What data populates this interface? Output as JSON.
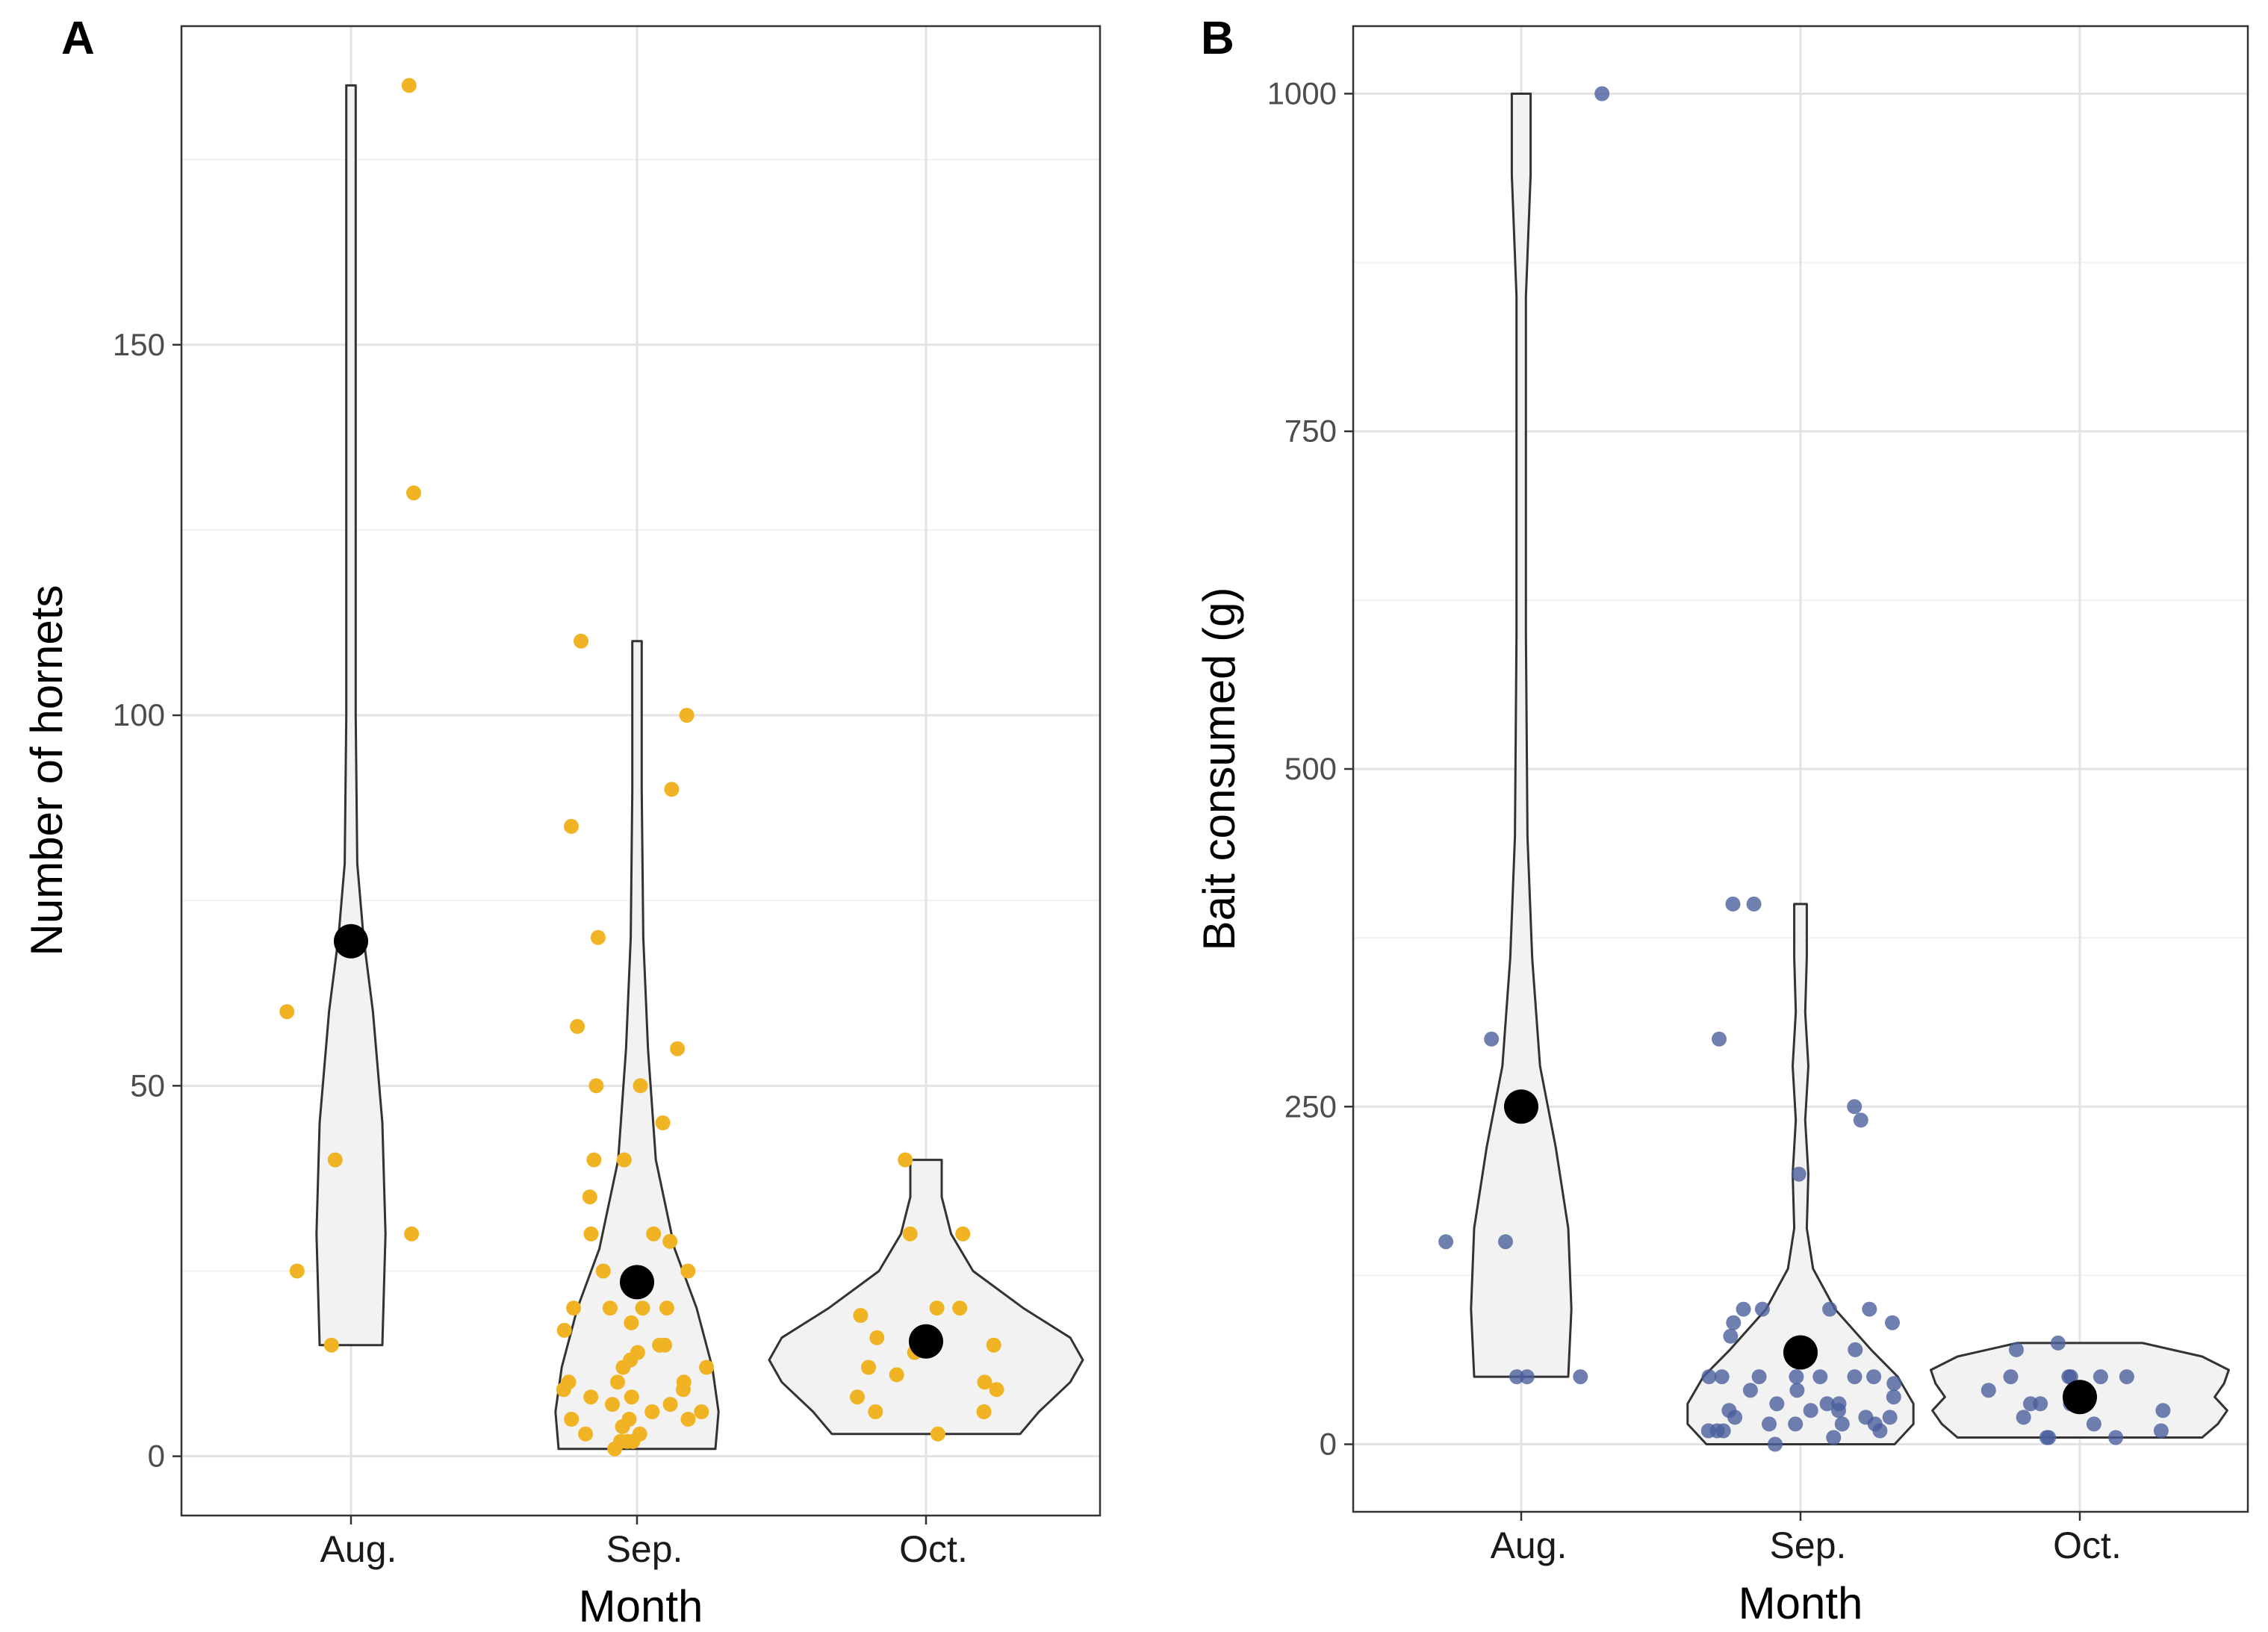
{
  "chart_data": [
    {
      "panel": "A",
      "type": "scatter",
      "subtype": "violin-with-jitter",
      "title": "",
      "xlabel": "Month",
      "ylabel": "Number of hornets",
      "categories": [
        "Aug.",
        "Sep.",
        "Oct."
      ],
      "yticks": [
        0,
        50,
        100,
        150
      ],
      "ylim": [
        -8,
        193
      ],
      "grid": true,
      "point_color": "#F0B323",
      "mean_color": "#000000",
      "violin_fill": "#F2F2F2",
      "points": [
        [
          185,
          130,
          60,
          40,
          30,
          25,
          15
        ],
        [
          110,
          100,
          90,
          85,
          70,
          58,
          55,
          50,
          50,
          45,
          40,
          40,
          35,
          30,
          30,
          29,
          25,
          25,
          20,
          20,
          20,
          20,
          18,
          17,
          15,
          15,
          14,
          13,
          12,
          12,
          10,
          10,
          10,
          9,
          9,
          8,
          8,
          7,
          7,
          6,
          6,
          5,
          5,
          5,
          4,
          3,
          3,
          2,
          2,
          2,
          1
        ],
        [
          40,
          30,
          30,
          20,
          20,
          19,
          16,
          15,
          14,
          12,
          11,
          10,
          9,
          8,
          6,
          6,
          3
        ]
      ],
      "means": [
        69.5,
        23.5,
        15.5
      ],
      "violins": [
        {
          "min": 15,
          "max": 185,
          "profile": [
            [
              15,
              0.2
            ],
            [
              30,
              0.22
            ],
            [
              45,
              0.2
            ],
            [
              60,
              0.14
            ],
            [
              70,
              0.08
            ],
            [
              80,
              0.04
            ],
            [
              100,
              0.03
            ],
            [
              140,
              0.03
            ],
            [
              185,
              0.03
            ]
          ]
        },
        {
          "min": 1,
          "max": 110,
          "profile": [
            [
              1,
              0.5
            ],
            [
              6,
              0.52
            ],
            [
              12,
              0.48
            ],
            [
              20,
              0.38
            ],
            [
              28,
              0.24
            ],
            [
              40,
              0.12
            ],
            [
              55,
              0.07
            ],
            [
              70,
              0.04
            ],
            [
              90,
              0.03
            ],
            [
              110,
              0.03
            ]
          ]
        },
        {
          "min": 3,
          "max": 40,
          "profile": [
            [
              3,
              0.6
            ],
            [
              6,
              0.72
            ],
            [
              10,
              0.92
            ],
            [
              13,
              1.0
            ],
            [
              16,
              0.92
            ],
            [
              20,
              0.62
            ],
            [
              25,
              0.3
            ],
            [
              30,
              0.16
            ],
            [
              35,
              0.1
            ],
            [
              40,
              0.1
            ]
          ]
        }
      ]
    },
    {
      "panel": "B",
      "type": "scatter",
      "subtype": "violin-with-jitter",
      "title": "",
      "xlabel": "Month",
      "ylabel": "Bait consumed (g)",
      "categories": [
        "Aug.",
        "Sep.",
        "Oct."
      ],
      "yticks": [
        0,
        250,
        500,
        750,
        1000
      ],
      "ylim": [
        -50,
        1050
      ],
      "grid": true,
      "point_color": "#4A5F9C",
      "mean_color": "#000000",
      "violin_fill": "#F2F2F2",
      "points": [
        [
          1000,
          300,
          150,
          150,
          50,
          50,
          50
        ],
        [
          400,
          400,
          300,
          250,
          240,
          200,
          100,
          100,
          100,
          100,
          90,
          90,
          80,
          70,
          50,
          50,
          50,
          50,
          50,
          50,
          50,
          45,
          40,
          40,
          35,
          30,
          30,
          30,
          25,
          25,
          25,
          20,
          20,
          20,
          15,
          15,
          15,
          15,
          10,
          10,
          10,
          10,
          5,
          0
        ],
        [
          75,
          70,
          50,
          50,
          50,
          50,
          50,
          40,
          35,
          30,
          30,
          30,
          25,
          20,
          15,
          10,
          5,
          5,
          5
        ]
      ],
      "means": [
        250,
        68,
        35
      ],
      "violins": [
        {
          "min": 50,
          "max": 1000,
          "profile": [
            [
              50,
              0.3
            ],
            [
              100,
              0.32
            ],
            [
              160,
              0.3
            ],
            [
              220,
              0.22
            ],
            [
              280,
              0.12
            ],
            [
              360,
              0.07
            ],
            [
              450,
              0.04
            ],
            [
              600,
              0.03
            ],
            [
              850,
              0.03
            ],
            [
              940,
              0.06
            ],
            [
              1000,
              0.06
            ]
          ]
        },
        {
          "min": 0,
          "max": 400,
          "profile": [
            [
              0,
              0.6
            ],
            [
              15,
              0.72
            ],
            [
              30,
              0.72
            ],
            [
              50,
              0.62
            ],
            [
              70,
              0.45
            ],
            [
              100,
              0.22
            ],
            [
              130,
              0.08
            ],
            [
              160,
              0.04
            ],
            [
              200,
              0.05
            ],
            [
              240,
              0.03
            ],
            [
              280,
              0.05
            ],
            [
              320,
              0.03
            ],
            [
              360,
              0.04
            ],
            [
              400,
              0.04
            ]
          ]
        },
        {
          "min": 5,
          "max": 75,
          "profile": [
            [
              5,
              0.78
            ],
            [
              15,
              0.88
            ],
            [
              25,
              0.94
            ],
            [
              35,
              0.86
            ],
            [
              45,
              0.92
            ],
            [
              55,
              0.95
            ],
            [
              65,
              0.78
            ],
            [
              75,
              0.4
            ]
          ]
        }
      ]
    }
  ]
}
